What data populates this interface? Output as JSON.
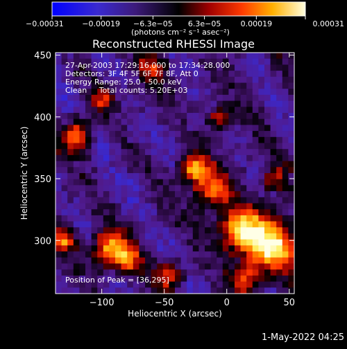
{
  "chart_data": {
    "type": "heatmap",
    "title": "Reconstructed RHESSI Image",
    "xlabel": "Heliocentric X (arcsec)",
    "ylabel": "Heliocentric Y (arcsec)",
    "xlim": [
      -137,
      54
    ],
    "ylim": [
      257,
      452
    ],
    "x_ticks": [
      {
        "value": -100,
        "label": "−100"
      },
      {
        "value": -50,
        "label": "−50"
      },
      {
        "value": 0,
        "label": "0"
      },
      {
        "value": 50,
        "label": "50"
      }
    ],
    "y_ticks": [
      {
        "value": 300,
        "label": "300"
      },
      {
        "value": 350,
        "label": "350"
      },
      {
        "value": 400,
        "label": "400"
      },
      {
        "value": 450,
        "label": "450"
      }
    ],
    "colorbar": {
      "range": [
        -0.00031,
        0.00031
      ],
      "ticks": [
        {
          "value": -0.00031,
          "label": "−0.00031"
        },
        {
          "value": -0.00019,
          "label": "−0.00019"
        },
        {
          "value": -6.3e-05,
          "label": "−6.3e−05"
        },
        {
          "value": 6.3e-05,
          "label": "6.3e−05"
        },
        {
          "value": 0.00019,
          "label": "0.00019"
        },
        {
          "value": 0.00031,
          "label": "0.00031"
        }
      ],
      "unit_label": "(photons cm⁻² s⁻¹ asec⁻²)"
    },
    "annotations": [
      "27-Apr-2003 17:29:16.000 to 17:34:28.000",
      "Detectors: 3F 4F 5F 6F 7F 8F, Att 0",
      "Energy Range: 25.0 - 50.0 keV",
      "Clean     Total counts: 5.20E+03"
    ],
    "peak_label": "Position of Peak = [36,295]",
    "peak_position": [
      36,
      295
    ],
    "grid": false,
    "grid_note": "Pixelated flux map; brighter (yellow/white) patches concentrated lower-right near the peak, orange/red patches along left edge and lower half, dark purple/blue regions in upper centre.",
    "hotspots": [
      {
        "x": 36,
        "y": 295,
        "intensity": 1.0,
        "spread": 22
      },
      {
        "x": 10,
        "y": 308,
        "intensity": 0.85,
        "spread": 18
      },
      {
        "x": -12,
        "y": 340,
        "intensity": 0.75,
        "spread": 14
      },
      {
        "x": -26,
        "y": 358,
        "intensity": 0.78,
        "spread": 12
      },
      {
        "x": -95,
        "y": 295,
        "intensity": 0.7,
        "spread": 14
      },
      {
        "x": -80,
        "y": 285,
        "intensity": 0.7,
        "spread": 12
      },
      {
        "x": -120,
        "y": 385,
        "intensity": 0.75,
        "spread": 12
      },
      {
        "x": -130,
        "y": 300,
        "intensity": 0.65,
        "spread": 10
      },
      {
        "x": -100,
        "y": 415,
        "intensity": 0.5,
        "spread": 10
      },
      {
        "x": -5,
        "y": 400,
        "intensity": 0.55,
        "spread": 10
      },
      {
        "x": 38,
        "y": 350,
        "intensity": 0.55,
        "spread": 10
      },
      {
        "x": -60,
        "y": 440,
        "intensity": 0.45,
        "spread": 12
      },
      {
        "x": -45,
        "y": 272,
        "intensity": 0.55,
        "spread": 12
      },
      {
        "x": 15,
        "y": 268,
        "intensity": 0.55,
        "spread": 12
      }
    ]
  },
  "footer": {
    "timestamp": "1-May-2022 04:25"
  }
}
